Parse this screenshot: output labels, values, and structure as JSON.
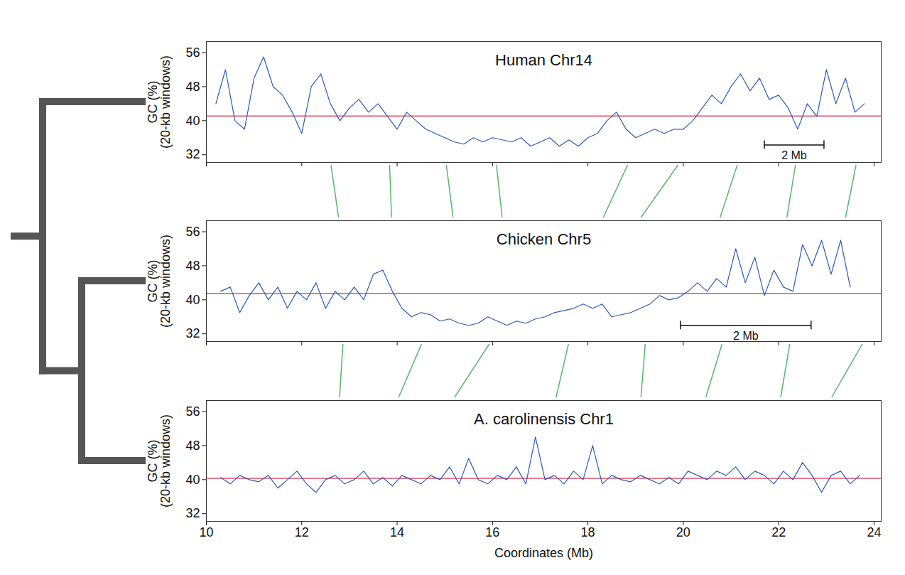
{
  "chart_data": [
    {
      "type": "line",
      "title": "Human Chr14",
      "ylabel": "GC (%)\n(20-kb windows)",
      "color": "#2b5cb5",
      "tick_labels": "y",
      "xlim": [
        10,
        24.15
      ],
      "xticks": [
        10,
        12,
        14,
        16,
        18,
        20,
        22,
        24
      ],
      "ylim": [
        30.2,
        58.6
      ],
      "yticks": [
        32,
        40,
        48,
        56
      ],
      "average": 41.1,
      "scale_bar": {
        "label": "2 Mb",
        "x": [
          21.7,
          22.95
        ],
        "y": 34.3
      },
      "links": [
        [
          12.62,
          12.78
        ],
        [
          13.85,
          13.89
        ],
        [
          15.04,
          15.18
        ],
        [
          16.09,
          16.21
        ],
        [
          18.84,
          18.33
        ],
        [
          19.9,
          19.12
        ],
        [
          21.14,
          20.78
        ],
        [
          22.36,
          22.18
        ],
        [
          23.63,
          23.41
        ]
      ],
      "x": [
        10.2,
        10.4,
        10.6,
        10.8,
        11.0,
        11.2,
        11.4,
        11.6,
        11.8,
        12.0,
        12.2,
        12.4,
        12.6,
        12.8,
        13.0,
        13.2,
        13.4,
        13.6,
        13.8,
        14.0,
        14.2,
        14.4,
        14.6,
        14.8,
        15.0,
        15.2,
        15.4,
        15.6,
        15.8,
        16.0,
        16.2,
        16.4,
        16.6,
        16.8,
        17.0,
        17.2,
        17.4,
        17.6,
        17.8,
        18.0,
        18.2,
        18.4,
        18.6,
        18.8,
        19.0,
        19.2,
        19.4,
        19.6,
        19.8,
        20.0,
        20.2,
        20.4,
        20.6,
        20.8,
        21.0,
        21.2,
        21.4,
        21.6,
        21.8,
        22.0,
        22.2,
        22.4,
        22.6,
        22.8,
        23.0,
        23.2,
        23.4,
        23.6,
        23.8
      ],
      "values": [
        44,
        52,
        40,
        38,
        50,
        55,
        48,
        46,
        42,
        37,
        48,
        51,
        44,
        40,
        43,
        45,
        42,
        44,
        41,
        38,
        42,
        40,
        38,
        37,
        36,
        35,
        34.5,
        36,
        35,
        36,
        35.5,
        35,
        36,
        34,
        35,
        36,
        34,
        35.5,
        34,
        36,
        37,
        40,
        42,
        38,
        36,
        37,
        38,
        37,
        38,
        38,
        40,
        43,
        46,
        44,
        48,
        51,
        47,
        50,
        45,
        46,
        43,
        38,
        44,
        41,
        52,
        44,
        50,
        42,
        44
      ]
    },
    {
      "type": "line",
      "title": "Chicken Chr5",
      "ylabel": "GC (%)\n(20-kb windows)",
      "color": "#2b5cb5",
      "tick_labels": "y",
      "xlim": [
        10,
        24.15
      ],
      "xticks": [
        10,
        12,
        14,
        16,
        18,
        20,
        22,
        24
      ],
      "ylim": [
        30.2,
        58.6
      ],
      "yticks": [
        32,
        40,
        48,
        56
      ],
      "average": 41.5,
      "scale_bar": {
        "label": "2 Mb",
        "x": [
          19.94,
          22.68
        ],
        "y": 34.0
      },
      "links": [
        [
          12.87,
          12.8
        ],
        [
          14.52,
          14.04
        ],
        [
          15.94,
          15.21
        ],
        [
          17.6,
          17.34
        ],
        [
          19.21,
          19.12
        ],
        [
          20.82,
          20.48
        ],
        [
          22.24,
          22.05
        ],
        [
          23.76,
          23.12
        ]
      ],
      "x": [
        10.3,
        10.5,
        10.7,
        10.9,
        11.1,
        11.3,
        11.5,
        11.7,
        11.9,
        12.1,
        12.3,
        12.5,
        12.7,
        12.9,
        13.1,
        13.3,
        13.5,
        13.7,
        13.9,
        14.1,
        14.3,
        14.5,
        14.7,
        14.9,
        15.1,
        15.3,
        15.5,
        15.7,
        15.9,
        16.1,
        16.3,
        16.5,
        16.7,
        16.9,
        17.1,
        17.3,
        17.5,
        17.7,
        17.9,
        18.1,
        18.3,
        18.5,
        18.7,
        18.9,
        19.1,
        19.3,
        19.5,
        19.7,
        19.9,
        20.1,
        20.3,
        20.5,
        20.7,
        20.9,
        21.1,
        21.3,
        21.5,
        21.7,
        21.9,
        22.1,
        22.3,
        22.5,
        22.7,
        22.9,
        23.1,
        23.3,
        23.5
      ],
      "values": [
        42,
        43,
        37,
        41,
        44,
        40,
        43,
        38,
        42,
        40,
        44,
        38,
        42,
        40,
        43,
        40,
        46,
        47,
        42,
        38,
        36,
        37,
        36.5,
        35,
        35.5,
        34.5,
        34,
        34.5,
        36,
        35,
        34,
        35,
        34.5,
        35.5,
        36,
        37,
        37.5,
        38,
        39,
        38,
        39,
        36,
        36.5,
        37,
        38,
        39,
        41,
        40,
        40.5,
        42,
        44,
        42,
        45,
        43,
        52,
        44,
        50,
        41,
        47,
        43,
        42,
        53,
        48,
        54,
        46,
        54,
        43
      ]
    },
    {
      "type": "line",
      "title": "A. carolinensis Chr1",
      "ylabel": "GC (%)\n(20-kb windows)",
      "xlabel": "Coordinates (Mb)",
      "color": "#2b5cb5",
      "xlim": [
        10,
        24.15
      ],
      "xticks": [
        10,
        12,
        14,
        16,
        18,
        20,
        22,
        24
      ],
      "ylim": [
        30.2,
        58.6
      ],
      "yticks": [
        32,
        40,
        48,
        56
      ],
      "average": 40.3,
      "x": [
        10.3,
        10.5,
        10.7,
        10.9,
        11.1,
        11.3,
        11.5,
        11.7,
        11.9,
        12.1,
        12.3,
        12.5,
        12.7,
        12.9,
        13.1,
        13.3,
        13.5,
        13.7,
        13.9,
        14.1,
        14.3,
        14.5,
        14.7,
        14.9,
        15.1,
        15.3,
        15.5,
        15.7,
        15.9,
        16.1,
        16.3,
        16.5,
        16.7,
        16.9,
        17.1,
        17.3,
        17.5,
        17.7,
        17.9,
        18.1,
        18.3,
        18.5,
        18.7,
        18.9,
        19.1,
        19.3,
        19.5,
        19.7,
        19.9,
        20.1,
        20.3,
        20.5,
        20.7,
        20.9,
        21.1,
        21.3,
        21.5,
        21.7,
        21.9,
        22.1,
        22.3,
        22.5,
        22.7,
        22.9,
        23.1,
        23.3,
        23.5,
        23.7
      ],
      "values": [
        40.5,
        39,
        41,
        40,
        39.5,
        41,
        38,
        40,
        42,
        39,
        37,
        40,
        41,
        39,
        40,
        42,
        39,
        40.5,
        38.5,
        41,
        40,
        39,
        41,
        40,
        43,
        39,
        45,
        40,
        39,
        41,
        40,
        43,
        39,
        50,
        40,
        41,
        39,
        42,
        40,
        48,
        39,
        41,
        40,
        39.5,
        41,
        40,
        39,
        40.5,
        39,
        42,
        41,
        40,
        42,
        41,
        43,
        40,
        42,
        41,
        39,
        42,
        40,
        44,
        41,
        37,
        41,
        42,
        39,
        41
      ]
    }
  ]
}
